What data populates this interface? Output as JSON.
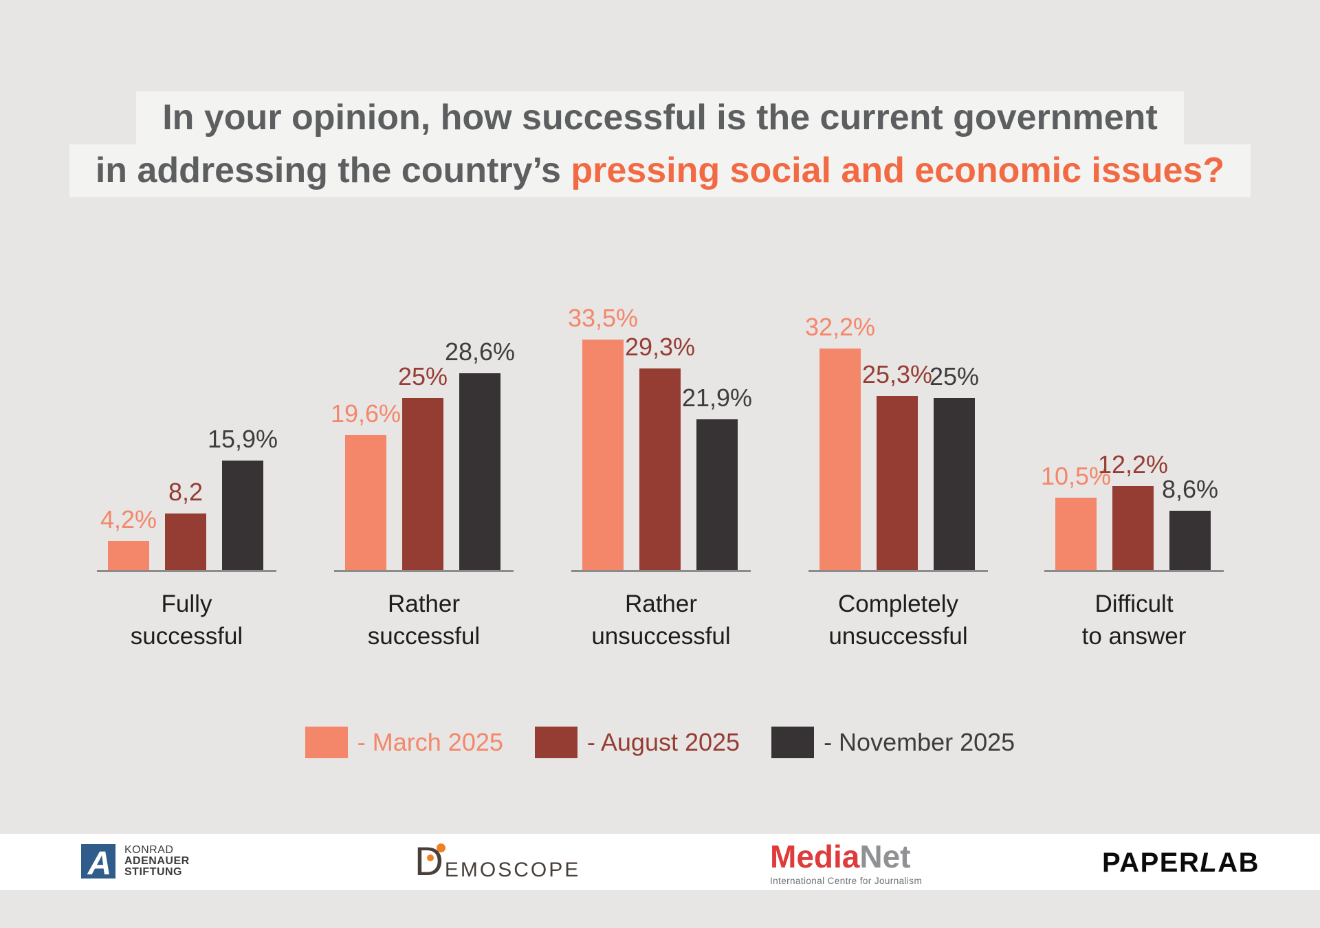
{
  "page": {
    "background": "#E7E6E5"
  },
  "title": {
    "line1": "In your opinion, how successful is the current government",
    "line2_prefix": "in addressing the country’s ",
    "line2_highlight": "pressing social and economic issues?",
    "highlight_color": "#F26A44",
    "text_color": "#5D5E60",
    "band_color": "#F3F3F1"
  },
  "chart_data": {
    "type": "bar",
    "unit": "percent",
    "categories": [
      "Fully successful",
      "Rather successful",
      "Rather unsuccessful",
      "Completely unsuccessful",
      "Difficult to answer"
    ],
    "category_lines": [
      [
        "Fully",
        "successful"
      ],
      [
        "Rather",
        "successful"
      ],
      [
        "Rather",
        "unsuccessful"
      ],
      [
        "Completely",
        "unsuccessful"
      ],
      [
        "Difficult",
        "to answer"
      ]
    ],
    "series": [
      {
        "name": "March 2025",
        "color": "#F4876A",
        "values": [
          4.2,
          19.6,
          33.5,
          32.2,
          10.5
        ],
        "value_labels": [
          "4,2%",
          "19,6%",
          "33,5%",
          "32,2%",
          "10,5%"
        ]
      },
      {
        "name": "August 2025",
        "color": "#963D33",
        "values": [
          8.2,
          25.0,
          29.3,
          25.3,
          12.2
        ],
        "value_labels": [
          "8,2",
          "25%",
          "29,3%",
          "25,3%",
          "12,2%"
        ]
      },
      {
        "name": "November 2025",
        "color": "#373334",
        "values": [
          15.9,
          28.6,
          21.9,
          25.0,
          8.6
        ],
        "value_labels": [
          "15,9%",
          "28,6%",
          "21,9%",
          "25%",
          "8,6%"
        ]
      }
    ],
    "ylim": [
      0,
      35
    ],
    "grid": false,
    "legend_position": "bottom",
    "axis_color": "#8B8B8B",
    "category_label_color": "#1D1D1B",
    "november_label_color": "#3F3C3D"
  },
  "legend": {
    "items": [
      {
        "label": "- March 2025",
        "color": "#F4876A"
      },
      {
        "label": "- August 2025",
        "color": "#963D33"
      },
      {
        "label": "- November 2025",
        "color": "#3F3C3D",
        "swatch_color": "#373334"
      }
    ]
  },
  "footer": {
    "background": "#FFFFFF",
    "kas": {
      "line1": "KONRAD",
      "line2": "ADENAUER",
      "line3": "STIFTUNG",
      "blue": "#2F5C8A"
    },
    "demoscope": {
      "d": "D",
      "rest": "EMOSCOPE",
      "brown": "#4A3E38",
      "orange": "#EF8122"
    },
    "medianet": {
      "part1": "Media",
      "part2": "Net",
      "tagline": "International Centre for Journalism",
      "red": "#DF3A3C",
      "gray": "#8F9193"
    },
    "paperlab": {
      "part1": "PAPER",
      "part2": "L",
      "part3": "AB"
    }
  }
}
